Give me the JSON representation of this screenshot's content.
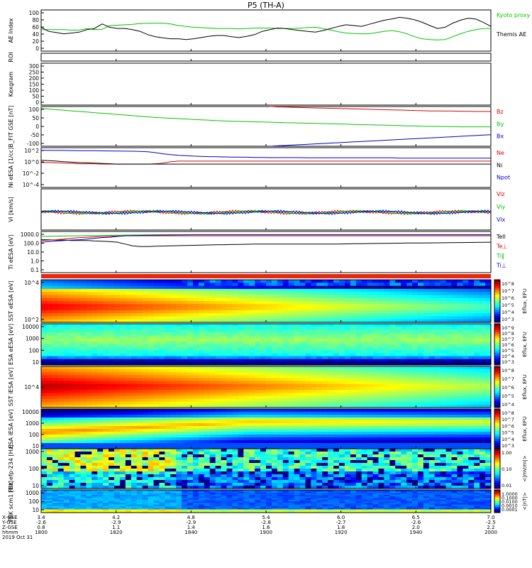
{
  "title": "P5 (TH-A)",
  "footer": {
    "rows": [
      {
        "label": "X-GSE",
        "values": [
          "3.4",
          "4.2",
          "4.8",
          "5.4",
          "6.0",
          "6.5",
          "7.0"
        ]
      },
      {
        "label": "Y-GSE",
        "values": [
          "-2.6",
          "-2.9",
          "-2.9",
          "-2.8",
          "-2.7",
          "-2.6",
          "-2.5"
        ]
      },
      {
        "label": "Z-GSE",
        "values": [
          "0.8",
          "1.1",
          "1.4",
          "1.6",
          "1.8",
          "2.0",
          "2.2"
        ]
      },
      {
        "label": "hhmm",
        "values": [
          "1800",
          "1820",
          "1840",
          "1900",
          "1920",
          "1940",
          "2000"
        ]
      }
    ],
    "date": "2019 Oct 31"
  },
  "colors": {
    "black": "#000000",
    "green": "#00c800",
    "red": "#e00000",
    "blue": "#0000c8",
    "navy": "#00007f"
  },
  "chart_data": [
    {
      "type": "line",
      "ylabel": "AE Index",
      "yticks": [
        "100",
        "80",
        "60",
        "40",
        "20",
        "0"
      ],
      "series": [
        {
          "name": "Kyoto proxy AE",
          "color": "#00c800",
          "values": [
            52,
            52,
            52,
            52,
            51,
            51,
            55,
            52,
            53,
            62,
            63,
            64,
            65,
            67,
            68,
            68,
            68,
            66,
            62,
            60,
            58,
            57,
            56,
            55,
            55,
            55,
            54,
            55,
            56,
            56,
            56,
            55,
            55,
            55,
            56,
            57,
            58,
            55,
            51,
            47,
            44,
            43,
            42,
            42,
            45,
            48,
            50,
            47,
            42,
            35,
            30,
            28,
            27,
            28,
            35,
            42,
            48,
            52,
            55,
            55
          ]
        },
        {
          "name": "Themis AE",
          "color": "#000000",
          "values": [
            58,
            48,
            45,
            42,
            44,
            46,
            52,
            55,
            66,
            58,
            55,
            55,
            52,
            48,
            40,
            35,
            32,
            30,
            30,
            28,
            30,
            33,
            36,
            38,
            38,
            35,
            33,
            36,
            40,
            48,
            52,
            56,
            55,
            52,
            50,
            48,
            46,
            50,
            55,
            60,
            64,
            62,
            60,
            65,
            70,
            75,
            78,
            82,
            80,
            76,
            70,
            62,
            55,
            58,
            68,
            75,
            80,
            78,
            70,
            60
          ]
        }
      ]
    },
    {
      "type": "line",
      "ylabel": "ROI",
      "yticks": []
    },
    {
      "type": "line",
      "ylabel": "Kexgram",
      "yticks": [
        "300",
        "250",
        "200",
        "150",
        "100",
        "50",
        "0"
      ]
    },
    {
      "type": "line",
      "ylabel": "B_FIT GSE [nT]",
      "yticks": [
        "100",
        "50",
        "0",
        "-50",
        "-100"
      ],
      "series": [
        {
          "name": "Bz",
          "color": "#e00000",
          "values": [
            null,
            null,
            null,
            null,
            null,
            null,
            null,
            null,
            null,
            null,
            null,
            null,
            null,
            null,
            null,
            null,
            null,
            null,
            null,
            null,
            null,
            null,
            null,
            null,
            null,
            null,
            null,
            null,
            null,
            null,
            100,
            98,
            97,
            96,
            95,
            94,
            93,
            92,
            91,
            90,
            89,
            88,
            87,
            86,
            85,
            84,
            83,
            82,
            81,
            80,
            79,
            78,
            78,
            77,
            77,
            76,
            76,
            75,
            75,
            75
          ]
        },
        {
          "name": "By",
          "color": "#00c800",
          "values": [
            90,
            87,
            84,
            81,
            78,
            75,
            72,
            69,
            66,
            63,
            60,
            57,
            54,
            51,
            48,
            45,
            43,
            41,
            39,
            37,
            35,
            33,
            31,
            29,
            27,
            26,
            25,
            24,
            23,
            22,
            21,
            20,
            19,
            18,
            17,
            16,
            15,
            14,
            13,
            12,
            11,
            10,
            9,
            8,
            7,
            6,
            5,
            4,
            3,
            2,
            1,
            0,
            0,
            -1,
            -1,
            -2,
            -2,
            -2,
            -2,
            -2
          ]
        },
        {
          "name": "Bx",
          "color": "#0000c8",
          "values": [
            null,
            null,
            null,
            null,
            null,
            null,
            null,
            null,
            null,
            null,
            null,
            null,
            null,
            null,
            null,
            null,
            null,
            null,
            null,
            null,
            null,
            null,
            null,
            null,
            null,
            null,
            null,
            null,
            null,
            null,
            -100,
            -98,
            -96,
            -94,
            -92,
            -90,
            -88,
            -86,
            -84,
            -82,
            -80,
            -78,
            -76,
            -74,
            -72,
            -70,
            -68,
            -66,
            -64,
            -62,
            -60,
            -58,
            -56,
            -54,
            -52,
            -50,
            -48,
            -46,
            -44,
            -42
          ]
        }
      ]
    },
    {
      "type": "line",
      "ylabel": "Ni eESA [1/cc]",
      "yticks": [
        "10^2",
        "10^0",
        "10^-2",
        "10^-4"
      ],
      "series": [
        {
          "name": "Ne",
          "color": "#e00000",
          "values": [
            1,
            1,
            0.9,
            0.8,
            0.7,
            0.6,
            0.6,
            0.6,
            0.5,
            0.5,
            0.5,
            0.5,
            0.5,
            0.5,
            0.5,
            0.6,
            0.8,
            1.5,
            2,
            2,
            2,
            2,
            2,
            2,
            2,
            2,
            2,
            2,
            2,
            2,
            2,
            2,
            2,
            2,
            2,
            2,
            2,
            2,
            2,
            2,
            2,
            2,
            2,
            2,
            2,
            2,
            2,
            2,
            2,
            2,
            2,
            2,
            2,
            2,
            2,
            2,
            2,
            2,
            2,
            2
          ]
        },
        {
          "name": "Ni",
          "color": "#000000",
          "values": [
            3,
            2.5,
            2,
            1.5,
            1.2,
            1,
            0.9,
            0.8,
            0.7,
            0.6,
            0.5,
            0.5,
            0.5,
            0.5,
            0.5,
            0.5,
            0.5,
            0.5,
            0.5,
            0.5,
            0.5,
            0.5,
            0.5,
            0.5,
            0.5,
            0.5,
            0.5,
            0.5,
            0.5,
            0.5,
            0.5,
            0.5,
            0.5,
            0.5,
            0.5,
            0.5,
            0.5,
            0.5,
            0.5,
            0.5,
            0.5,
            0.5,
            0.5,
            0.5,
            0.5,
            0.5,
            0.5,
            0.5,
            0.5,
            0.5,
            0.5,
            0.5,
            0.5,
            0.5,
            0.5,
            0.5,
            0.5,
            0.5,
            0.5,
            0.5
          ]
        },
        {
          "name": "Npot",
          "color": "#0000c8",
          "values": [
            300,
            300,
            280,
            280,
            260,
            250,
            250,
            240,
            230,
            220,
            210,
            200,
            190,
            180,
            150,
            100,
            60,
            40,
            30,
            25,
            20,
            18,
            16,
            15,
            14,
            13,
            12,
            12,
            11,
            11,
            10,
            10,
            10,
            10,
            10,
            9,
            9,
            9,
            9,
            9,
            9,
            9,
            9,
            9,
            9,
            9,
            9,
            8,
            8,
            8,
            8,
            8,
            8,
            8,
            8,
            8,
            8,
            8,
            8,
            8
          ]
        }
      ]
    },
    {
      "type": "line",
      "ylabel": "Vi [km/s]",
      "yticks": [],
      "series": [
        {
          "name": "Viz",
          "color": "#e00000"
        },
        {
          "name": "Viy",
          "color": "#00c800"
        },
        {
          "name": "Vix",
          "color": "#0000c8"
        }
      ]
    },
    {
      "type": "line",
      "ylabel": "Ti eESA [eV]",
      "yticks": [
        "1000.0",
        "100.0",
        "10.0",
        "1.0",
        "0.1"
      ],
      "series": [
        {
          "name": "Tell",
          "color": "#000000",
          "values": [
            1000,
            1000,
            900,
            900,
            800,
            800,
            800,
            700,
            650,
            600,
            500,
            300,
            180,
            150,
            150,
            160,
            170,
            180,
            190,
            200,
            210,
            220,
            230,
            240,
            250,
            260,
            270,
            280,
            290,
            300,
            300,
            300,
            300,
            300,
            300,
            300,
            300,
            300,
            300,
            300,
            310,
            320,
            330,
            340,
            350,
            360,
            370,
            380,
            390,
            400,
            400,
            410,
            420,
            430,
            440,
            450,
            460,
            470,
            480,
            500
          ]
        },
        {
          "name": "Te⊥",
          "color": "#e00000",
          "values": [
            800,
            900,
            1000,
            1200,
            1500,
            1800,
            2000,
            2200,
            2400,
            2600,
            2800,
            3000,
            3000,
            3000,
            3000,
            3000,
            3000,
            3000,
            3000,
            3000,
            3000,
            3000,
            3000,
            3000,
            3000,
            3000,
            3000,
            3000,
            3000,
            3000,
            3000,
            3000,
            3000,
            3000,
            3000,
            3000,
            3000,
            3000,
            3000,
            3000,
            3000,
            3000,
            3000,
            3000,
            3000,
            3000,
            3000,
            3000,
            3000,
            3000,
            3000,
            3000,
            3000,
            3000,
            3000,
            3000,
            3000,
            3000,
            3000,
            3000
          ]
        },
        {
          "name": "Ti‖",
          "color": "#00c800",
          "values": [
            2500,
            2600,
            2700,
            2800,
            2900,
            3000,
            3100,
            3200,
            3300,
            3400,
            3500,
            3600,
            3700,
            3800,
            3900,
            4000,
            4000,
            4000,
            4000,
            4000,
            4000,
            4000,
            4000,
            4000,
            4000,
            4000,
            4000,
            4000,
            4000,
            4000,
            4000,
            4000,
            4000,
            4000,
            4000,
            4000,
            4000,
            4000,
            4000,
            4000,
            4000,
            4000,
            4000,
            4000,
            4000,
            4000,
            4000,
            4000,
            4000,
            4000,
            4000,
            4000,
            4000,
            4000,
            4000,
            4000,
            4000,
            4000,
            4000,
            4000
          ]
        },
        {
          "name": "Ti⊥",
          "color": "#0000c8",
          "values": [
            500,
            600,
            700,
            800,
            900,
            1000,
            1200,
            1500,
            1800,
            2000,
            2500,
            3000,
            3200,
            3300,
            3400,
            3500,
            3600,
            3700,
            3800,
            3900,
            4000,
            4000,
            4000,
            4000,
            4000,
            4000,
            4000,
            4000,
            4000,
            4000,
            4000,
            4000,
            4000,
            4000,
            4000,
            4000,
            4000,
            4000,
            4000,
            4000,
            4000,
            4000,
            4000,
            4000,
            4000,
            4000,
            4000,
            4000,
            4000,
            4000,
            4000,
            4000,
            4000,
            4000,
            4000,
            4000,
            4000,
            4000,
            4000,
            4000
          ]
        }
      ]
    },
    {
      "type": "heatmap",
      "ylabel": "SST eESA [eV]",
      "yticks": [
        "10^4",
        "10^2"
      ],
      "colorbar": "Eflux, EFU",
      "cbticks": [
        "10^8",
        "10^7",
        "10^6",
        "10^5",
        "10^4",
        "10^3"
      ]
    },
    {
      "type": "heatmap",
      "ylabel": "ESA eESA [eV]",
      "yticks": [
        "10000",
        "1000",
        "100",
        "10"
      ],
      "colorbar": "Eflux, EFU",
      "cbticks": [
        "10^9",
        "10^8",
        "10^7",
        "10^6",
        "10^5",
        "10^4",
        "10^3"
      ]
    },
    {
      "type": "heatmap",
      "ylabel": "SST iESA [eV]",
      "yticks": [
        "10^4"
      ],
      "colorbar": "Eflux, EFU",
      "cbticks": [
        "10^8",
        "10^7",
        "10^6",
        "10^5",
        "10^4"
      ]
    },
    {
      "type": "heatmap",
      "ylabel": "ESA iESA [eV]",
      "yticks": [
        "10000",
        "1000",
        "100",
        "10"
      ],
      "colorbar": "Eflux, EFU",
      "cbticks": [
        "10^8",
        "10^7",
        "10^6",
        "10^5",
        "10^4",
        "10^3"
      ]
    },
    {
      "type": "heatmap",
      "ylabel": "FBK efp-234 [Hz]",
      "yticks": [
        "1000",
        "100",
        "10"
      ],
      "colorbar": "<|mV/m|>",
      "cbticks": [
        "1.00",
        "0.10",
        "0.01"
      ]
    },
    {
      "type": "heatmap",
      "ylabel": "FBK scm1 [Hz]",
      "yticks": [
        "1000",
        "100",
        "10"
      ],
      "colorbar": "<|nT|>",
      "cbticks": [
        "1.0000",
        "0.1000",
        "0.0100",
        "0.0010",
        "0.0001"
      ]
    }
  ]
}
